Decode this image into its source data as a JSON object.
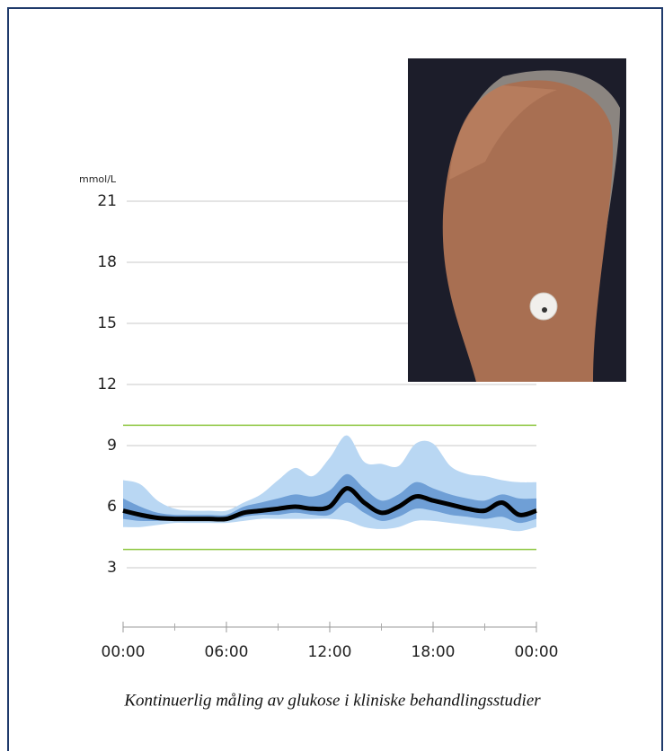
{
  "chart_data": {
    "type": "agp",
    "y_unit": "mmol/L",
    "caption": "Kontinuerlig måling av glukose i kliniske behandlingsstudier",
    "x": [
      0,
      1,
      2,
      3,
      4,
      5,
      6,
      7,
      8,
      9,
      10,
      11,
      12,
      13,
      14,
      15,
      16,
      17,
      18,
      19,
      20,
      21,
      22,
      23,
      24
    ],
    "xlim": [
      0,
      24
    ],
    "xticks": [
      {
        "value": 0,
        "label": "00:00"
      },
      {
        "value": 6,
        "label": "06:00"
      },
      {
        "value": 12,
        "label": "12:00"
      },
      {
        "value": 18,
        "label": "18:00"
      },
      {
        "value": 24,
        "label": "00:00"
      }
    ],
    "xminorticks": [
      3,
      9,
      15,
      21
    ],
    "ylim": [
      0,
      21
    ],
    "yticks": [
      3,
      6,
      9,
      12,
      15,
      18,
      21
    ],
    "grid": true,
    "target_range": [
      3.9,
      10
    ],
    "target_color": "#8dc63f",
    "bands": [
      {
        "color": "#b9d7f3",
        "lower": [
          5.0,
          5.0,
          5.1,
          5.2,
          5.2,
          5.2,
          5.2,
          5.3,
          5.4,
          5.4,
          5.4,
          5.4,
          5.4,
          5.3,
          5.0,
          4.9,
          5.0,
          5.3,
          5.3,
          5.2,
          5.1,
          5.0,
          4.9,
          4.8,
          5.0
        ],
        "upper": [
          7.3,
          7.1,
          6.3,
          5.9,
          5.8,
          5.8,
          5.8,
          6.2,
          6.6,
          7.3,
          7.9,
          7.5,
          8.4,
          9.5,
          8.2,
          8.1,
          8.0,
          9.1,
          9.1,
          8.0,
          7.6,
          7.5,
          7.3,
          7.2,
          7.2
        ]
      },
      {
        "color": "#6f9fd6",
        "lower": [
          5.4,
          5.3,
          5.3,
          5.3,
          5.3,
          5.3,
          5.3,
          5.5,
          5.6,
          5.6,
          5.7,
          5.6,
          5.6,
          6.2,
          5.7,
          5.3,
          5.5,
          5.9,
          5.8,
          5.6,
          5.5,
          5.4,
          5.5,
          5.2,
          5.4
        ],
        "upper": [
          6.4,
          6.0,
          5.7,
          5.6,
          5.6,
          5.6,
          5.6,
          6.0,
          6.2,
          6.4,
          6.6,
          6.5,
          6.8,
          7.6,
          6.9,
          6.3,
          6.6,
          7.2,
          6.9,
          6.6,
          6.4,
          6.3,
          6.6,
          6.4,
          6.4
        ]
      }
    ],
    "series": [
      {
        "color": "#000000",
        "values": [
          5.8,
          5.6,
          5.45,
          5.4,
          5.4,
          5.4,
          5.4,
          5.7,
          5.8,
          5.9,
          6.0,
          5.9,
          6.0,
          6.9,
          6.2,
          5.7,
          6.0,
          6.5,
          6.3,
          6.1,
          5.9,
          5.8,
          6.2,
          5.6,
          5.8
        ]
      }
    ]
  }
}
